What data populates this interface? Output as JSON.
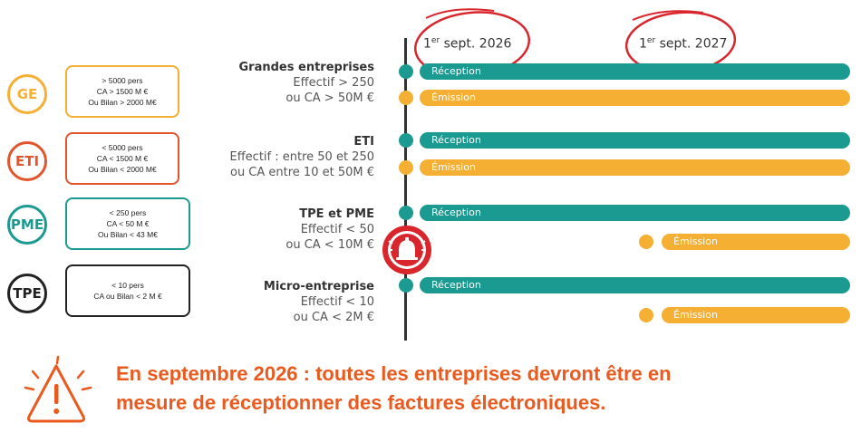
{
  "legend": [
    {
      "abbr": "GE",
      "color": "#f5b033",
      "lines": [
        "> 5000 pers",
        "CA > 1500 M €",
        "Ou Bilan > 2000 M€"
      ]
    },
    {
      "abbr": "ETI",
      "color": "#e2542b",
      "lines": [
        "< 5000 pers",
        "CA < 1500 M €",
        "Ou Bilan < 2000 M€"
      ]
    },
    {
      "abbr": "PME",
      "color": "#1a9a90",
      "lines": [
        "< 250 pers",
        "CA < 50 M €",
        "Ou Bilan < 43 M€"
      ]
    },
    {
      "abbr": "TPE",
      "color": "#222222",
      "lines": [
        "< 10 pers",
        "CA ou Bilan < 2 M €"
      ]
    }
  ],
  "categories": [
    {
      "title": "Grandes entreprises",
      "line1": "Effectif > 250",
      "line2": "ou CA > 50M €"
    },
    {
      "title": "ETI",
      "line1": "Effectif : entre 50 et 250",
      "line2": "ou CA entre 10 et 50M €"
    },
    {
      "title": "TPE et PME",
      "line1": "Effectif < 50",
      "line2": "ou CA < 10M €"
    },
    {
      "title": "Micro-entreprise",
      "line1": "Effectif < 10",
      "line2": "ou CA < 2M €"
    }
  ],
  "dates": {
    "d1_num": "1",
    "d1_sup": "er",
    "d1_rest": " sept. 2026",
    "d2_num": "1",
    "d2_sup": "er",
    "d2_rest": " sept. 2027"
  },
  "bars": {
    "reception": "Réception",
    "emission": "Émission"
  },
  "colors": {
    "teal": "#1a9a90",
    "gold": "#f5b033",
    "red": "#d8262c",
    "orange": "#ea5a1e"
  },
  "icons": {
    "bell": "alarm-bell-icon",
    "warning": "warning-triangle-icon"
  },
  "alert": {
    "line1": "En septembre 2026 : toutes les entreprises devront être en",
    "line2": "mesure de réceptionner des factures électroniques."
  }
}
